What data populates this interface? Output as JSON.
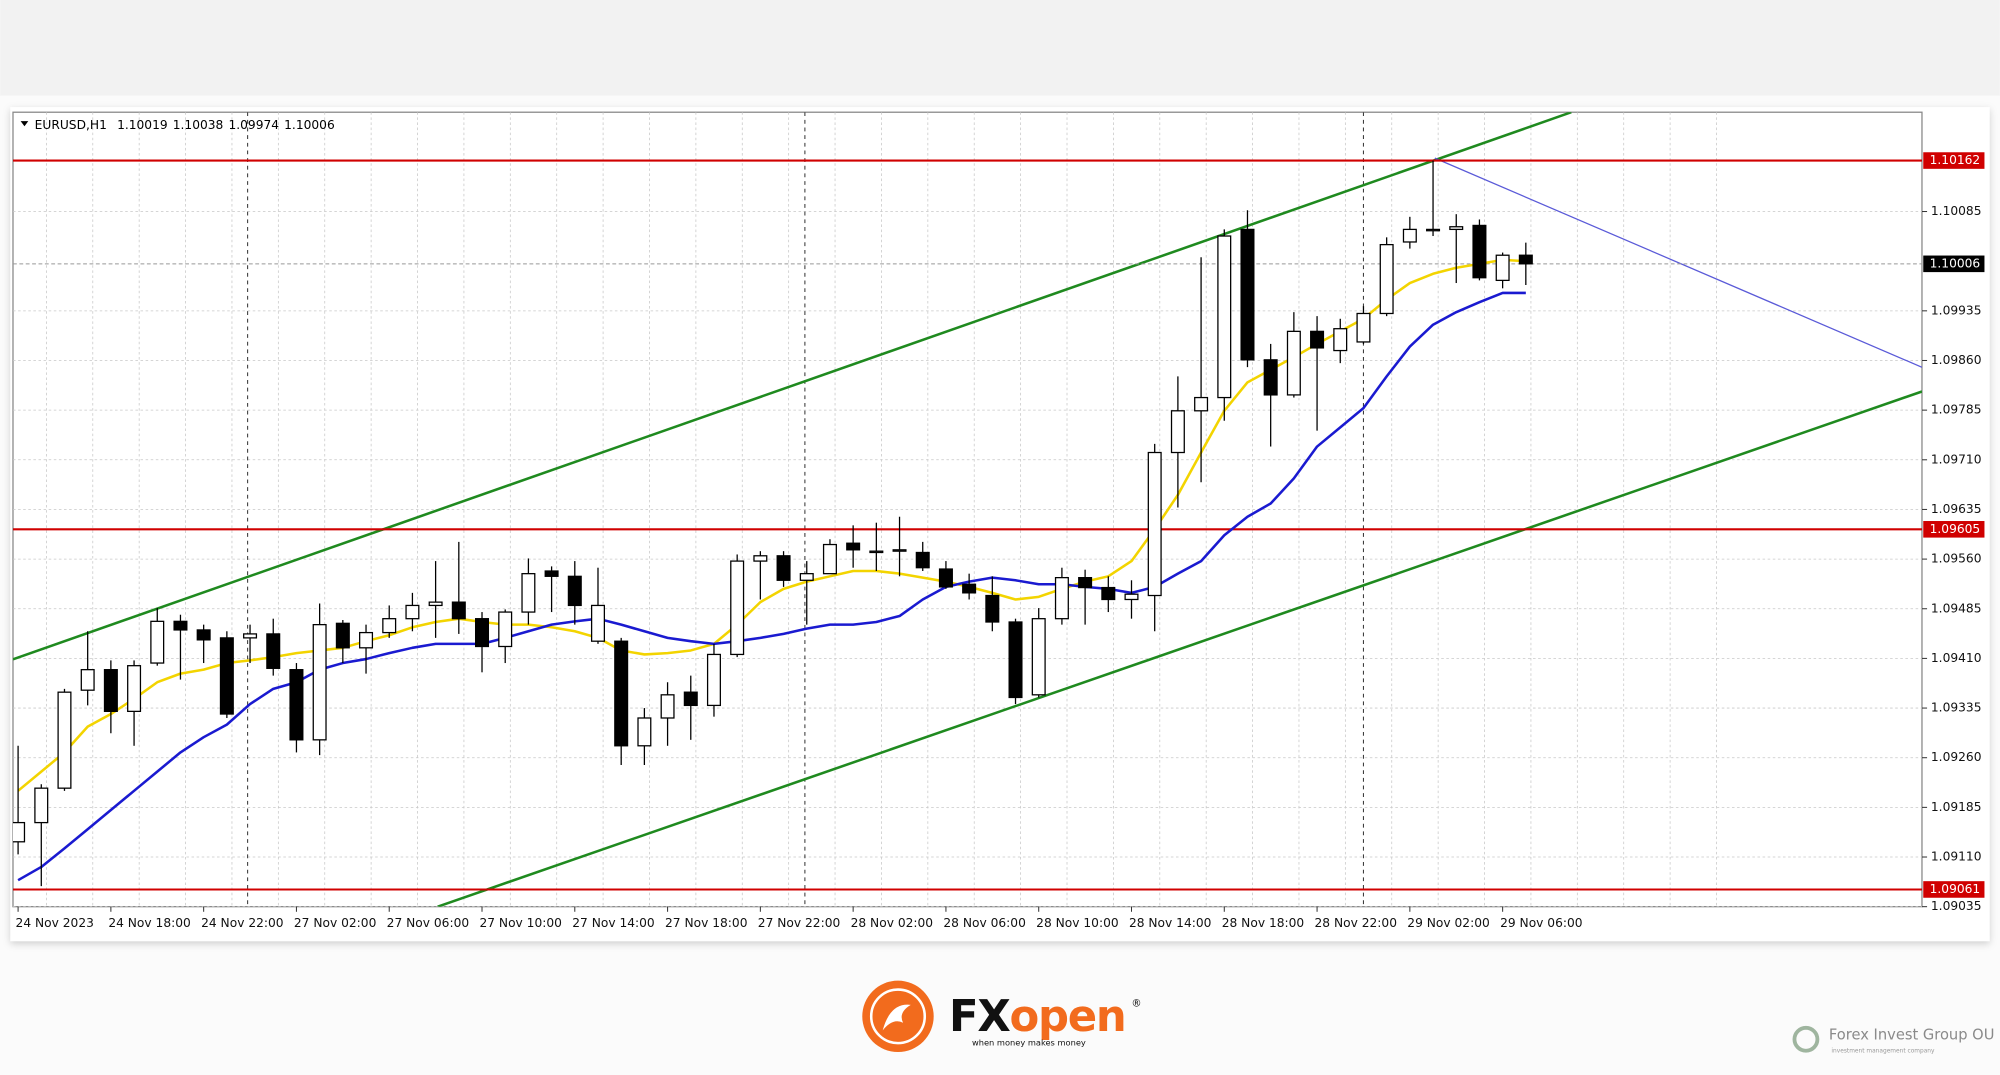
{
  "chart_data": {
    "type": "candlestick",
    "symbol": "EURUSD,H1",
    "categories": [
      "24 Nov 2023",
      null,
      null,
      null,
      "24 Nov 18:00",
      null,
      null,
      null,
      "24 Nov 22:00",
      null,
      null,
      null,
      "27 Nov 02:00",
      null,
      null,
      null,
      "27 Nov 06:00",
      null,
      null,
      null,
      "27 Nov 10:00",
      null,
      null,
      null,
      "27 Nov 14:00",
      null,
      null,
      null,
      "27 Nov 18:00",
      null,
      null,
      null,
      "27 Nov 22:00",
      null,
      null,
      null,
      "28 Nov 02:00",
      null,
      null,
      null,
      "28 Nov 06:00",
      null,
      null,
      null,
      "28 Nov 10:00",
      null,
      null,
      null,
      "28 Nov 14:00",
      null,
      null,
      null,
      "28 Nov 18:00",
      null,
      null,
      null,
      "28 Nov 22:00",
      null,
      null,
      null,
      "29 Nov 02:00",
      null,
      null,
      null,
      "29 Nov 06:00",
      null
    ],
    "open": [
      1.09133,
      1.09162,
      1.09214,
      1.09362,
      1.09393,
      1.0933,
      1.09403,
      1.09466,
      1.09453,
      1.09441,
      1.09441,
      1.09447,
      1.09393,
      1.09287,
      1.09463,
      1.09426,
      1.09449,
      1.0947,
      1.0949,
      1.09495,
      1.0947,
      1.09428,
      1.0948,
      1.09542,
      1.09534,
      1.09436,
      1.09436,
      1.09278,
      1.0932,
      1.09359,
      1.09339,
      1.09416,
      1.09557,
      1.09565,
      1.09528,
      1.09538,
      1.09584,
      1.0957,
      1.09572,
      1.0957,
      1.09545,
      1.09522,
      1.09505,
      1.09465,
      1.09355,
      1.0947,
      1.09532,
      1.09517,
      1.09499,
      1.09505,
      1.09721,
      1.09784,
      1.09804,
      1.10058,
      1.09861,
      1.09808,
      1.09904,
      1.09875,
      1.09888,
      1.09931,
      1.10039,
      1.10056,
      1.10058,
      1.10064,
      1.09981,
      1.10019
    ],
    "high": [
      1.09278,
      1.0922,
      1.09364,
      1.09451,
      1.09407,
      1.09407,
      1.09486,
      1.09476,
      1.09461,
      1.09451,
      1.09461,
      1.0947,
      1.09403,
      1.09493,
      1.09468,
      1.09461,
      1.0949,
      1.09509,
      1.09557,
      1.09586,
      1.0948,
      1.09484,
      1.09561,
      1.09549,
      1.09557,
      1.09547,
      1.09441,
      1.09335,
      1.09374,
      1.09384,
      1.09432,
      1.09567,
      1.09572,
      1.09572,
      1.09557,
      1.0959,
      1.09611,
      1.09615,
      1.09624,
      1.09586,
      1.09557,
      1.09538,
      1.09534,
      1.0947,
      1.09486,
      1.09547,
      1.09544,
      1.09534,
      1.09528,
      1.09734,
      1.09836,
      1.10016,
      1.10058,
      1.10087,
      1.09885,
      1.09933,
      1.09927,
      1.09923,
      1.09942,
      1.10046,
      1.10077,
      1.10162,
      1.10081,
      1.10073,
      1.10023,
      1.10038
    ],
    "low": [
      1.09114,
      1.09066,
      1.0921,
      1.09339,
      1.09297,
      1.09278,
      1.09399,
      1.09378,
      1.09403,
      1.0932,
      1.09403,
      1.09384,
      1.09268,
      1.09264,
      1.09403,
      1.09387,
      1.09441,
      1.09451,
      1.09441,
      1.09447,
      1.09389,
      1.09403,
      1.09461,
      1.0948,
      1.09461,
      1.09432,
      1.09249,
      1.09249,
      1.09278,
      1.09287,
      1.09322,
      1.09412,
      1.09499,
      1.09518,
      1.09461,
      1.09538,
      1.09547,
      1.09542,
      1.09534,
      1.09542,
      1.09515,
      1.09499,
      1.09451,
      1.09341,
      1.09351,
      1.09461,
      1.09461,
      1.0948,
      1.0947,
      1.09451,
      1.09638,
      1.09676,
      1.09769,
      1.0985,
      1.0973,
      1.09804,
      1.09754,
      1.09856,
      1.09885,
      1.09927,
      1.10029,
      1.10048,
      1.09977,
      1.09981,
      1.09969,
      1.09974
    ],
    "close": [
      1.09162,
      1.09214,
      1.09359,
      1.09393,
      1.0933,
      1.09399,
      1.09466,
      1.09453,
      1.09438,
      1.09326,
      1.09447,
      1.09395,
      1.09287,
      1.09461,
      1.09426,
      1.09449,
      1.0947,
      1.0949,
      1.09495,
      1.0947,
      1.09428,
      1.0948,
      1.09538,
      1.09534,
      1.0949,
      1.0949,
      1.09278,
      1.0932,
      1.09355,
      1.09339,
      1.09416,
      1.09557,
      1.09565,
      1.09528,
      1.09538,
      1.09582,
      1.09574,
      1.09572,
      1.09574,
      1.09547,
      1.09518,
      1.09509,
      1.09465,
      1.09351,
      1.0947,
      1.09532,
      1.09517,
      1.09499,
      1.09507,
      1.09721,
      1.09784,
      1.09804,
      1.10048,
      1.09861,
      1.09808,
      1.09904,
      1.09879,
      1.09908,
      1.09931,
      1.10035,
      1.10058,
      1.10058,
      1.10062,
      1.09985,
      1.10019,
      1.10006
    ],
    "bull_color": "#ffffff",
    "bear_color": "#000000",
    "lines": [
      {
        "color": "#f3d400",
        "values": [
          1.0921,
          1.09239,
          1.09268,
          1.09307,
          1.09326,
          1.09349,
          1.09374,
          1.09387,
          1.09393,
          1.09403,
          1.09407,
          1.09412,
          1.09418,
          1.09422,
          1.09426,
          1.09436,
          1.09445,
          1.09457,
          1.09465,
          1.0947,
          1.09465,
          1.09461,
          1.09461,
          1.09457,
          1.09451,
          1.09441,
          1.09422,
          1.09416,
          1.09418,
          1.09422,
          1.09432,
          1.09461,
          1.09495,
          1.09515,
          1.09526,
          1.09534,
          1.09542,
          1.09542,
          1.09538,
          1.09532,
          1.09526,
          1.09518,
          1.09509,
          1.09499,
          1.09503,
          1.09515,
          1.09526,
          1.09534,
          1.09557,
          1.09605,
          1.09657,
          1.09721,
          1.09784,
          1.09827,
          1.09846,
          1.09865,
          1.09885,
          1.09904,
          1.09923,
          1.09952,
          1.09977,
          1.09991,
          1.1,
          1.10006,
          1.10012,
          1.1001
        ]
      },
      {
        "color": "#1a1ad0",
        "values": [
          1.09075,
          1.09095,
          1.09123,
          1.09152,
          1.09181,
          1.0921,
          1.09239,
          1.09268,
          1.09291,
          1.0931,
          1.09341,
          1.09364,
          1.09374,
          1.09393,
          1.09403,
          1.09409,
          1.09418,
          1.09426,
          1.09432,
          1.09432,
          1.09432,
          1.09441,
          1.09451,
          1.09461,
          1.09466,
          1.0947,
          1.09461,
          1.09451,
          1.09441,
          1.09436,
          1.09432,
          1.09436,
          1.09441,
          1.09447,
          1.09455,
          1.09461,
          1.09461,
          1.09465,
          1.09474,
          1.09499,
          1.09518,
          1.09526,
          1.09532,
          1.09528,
          1.09522,
          1.09522,
          1.09518,
          1.09515,
          1.09509,
          1.09518,
          1.09538,
          1.09557,
          1.09596,
          1.09624,
          1.09644,
          1.09682,
          1.0973,
          1.09759,
          1.09788,
          1.09836,
          1.09881,
          1.09914,
          1.09933,
          1.09948,
          1.09962,
          1.09962
        ]
      }
    ],
    "levels": [
      {
        "value": 1.10162,
        "color": "#d00000"
      },
      {
        "value": 1.09605,
        "color": "#d00000"
      },
      {
        "value": 1.09061,
        "color": "#d00000"
      }
    ],
    "ylim": [
      1.09035,
      1.10235
    ],
    "yticks": [
      1.10085,
      1.09935,
      {
        "value": 1.0986,
        "label": "1.09860"
      },
      1.09785,
      {
        "value": 1.0971,
        "label": "1.09710"
      },
      1.09635,
      {
        "value": 1.0956,
        "label": "1.09560"
      },
      1.09485,
      {
        "value": 1.0941,
        "label": "1.09410"
      },
      1.09335,
      {
        "value": 1.0926,
        "label": "1.09260"
      },
      1.09185,
      {
        "value": 1.0911,
        "label": "1.09110"
      },
      1.09035
    ],
    "grid": true
  },
  "branding": {
    "logo_fx": "FX",
    "logo_open": "open",
    "registered": "®",
    "tagline": "when money makes money",
    "partner": "Forex Invest Group OU",
    "partner_tagline": "investment management company"
  }
}
